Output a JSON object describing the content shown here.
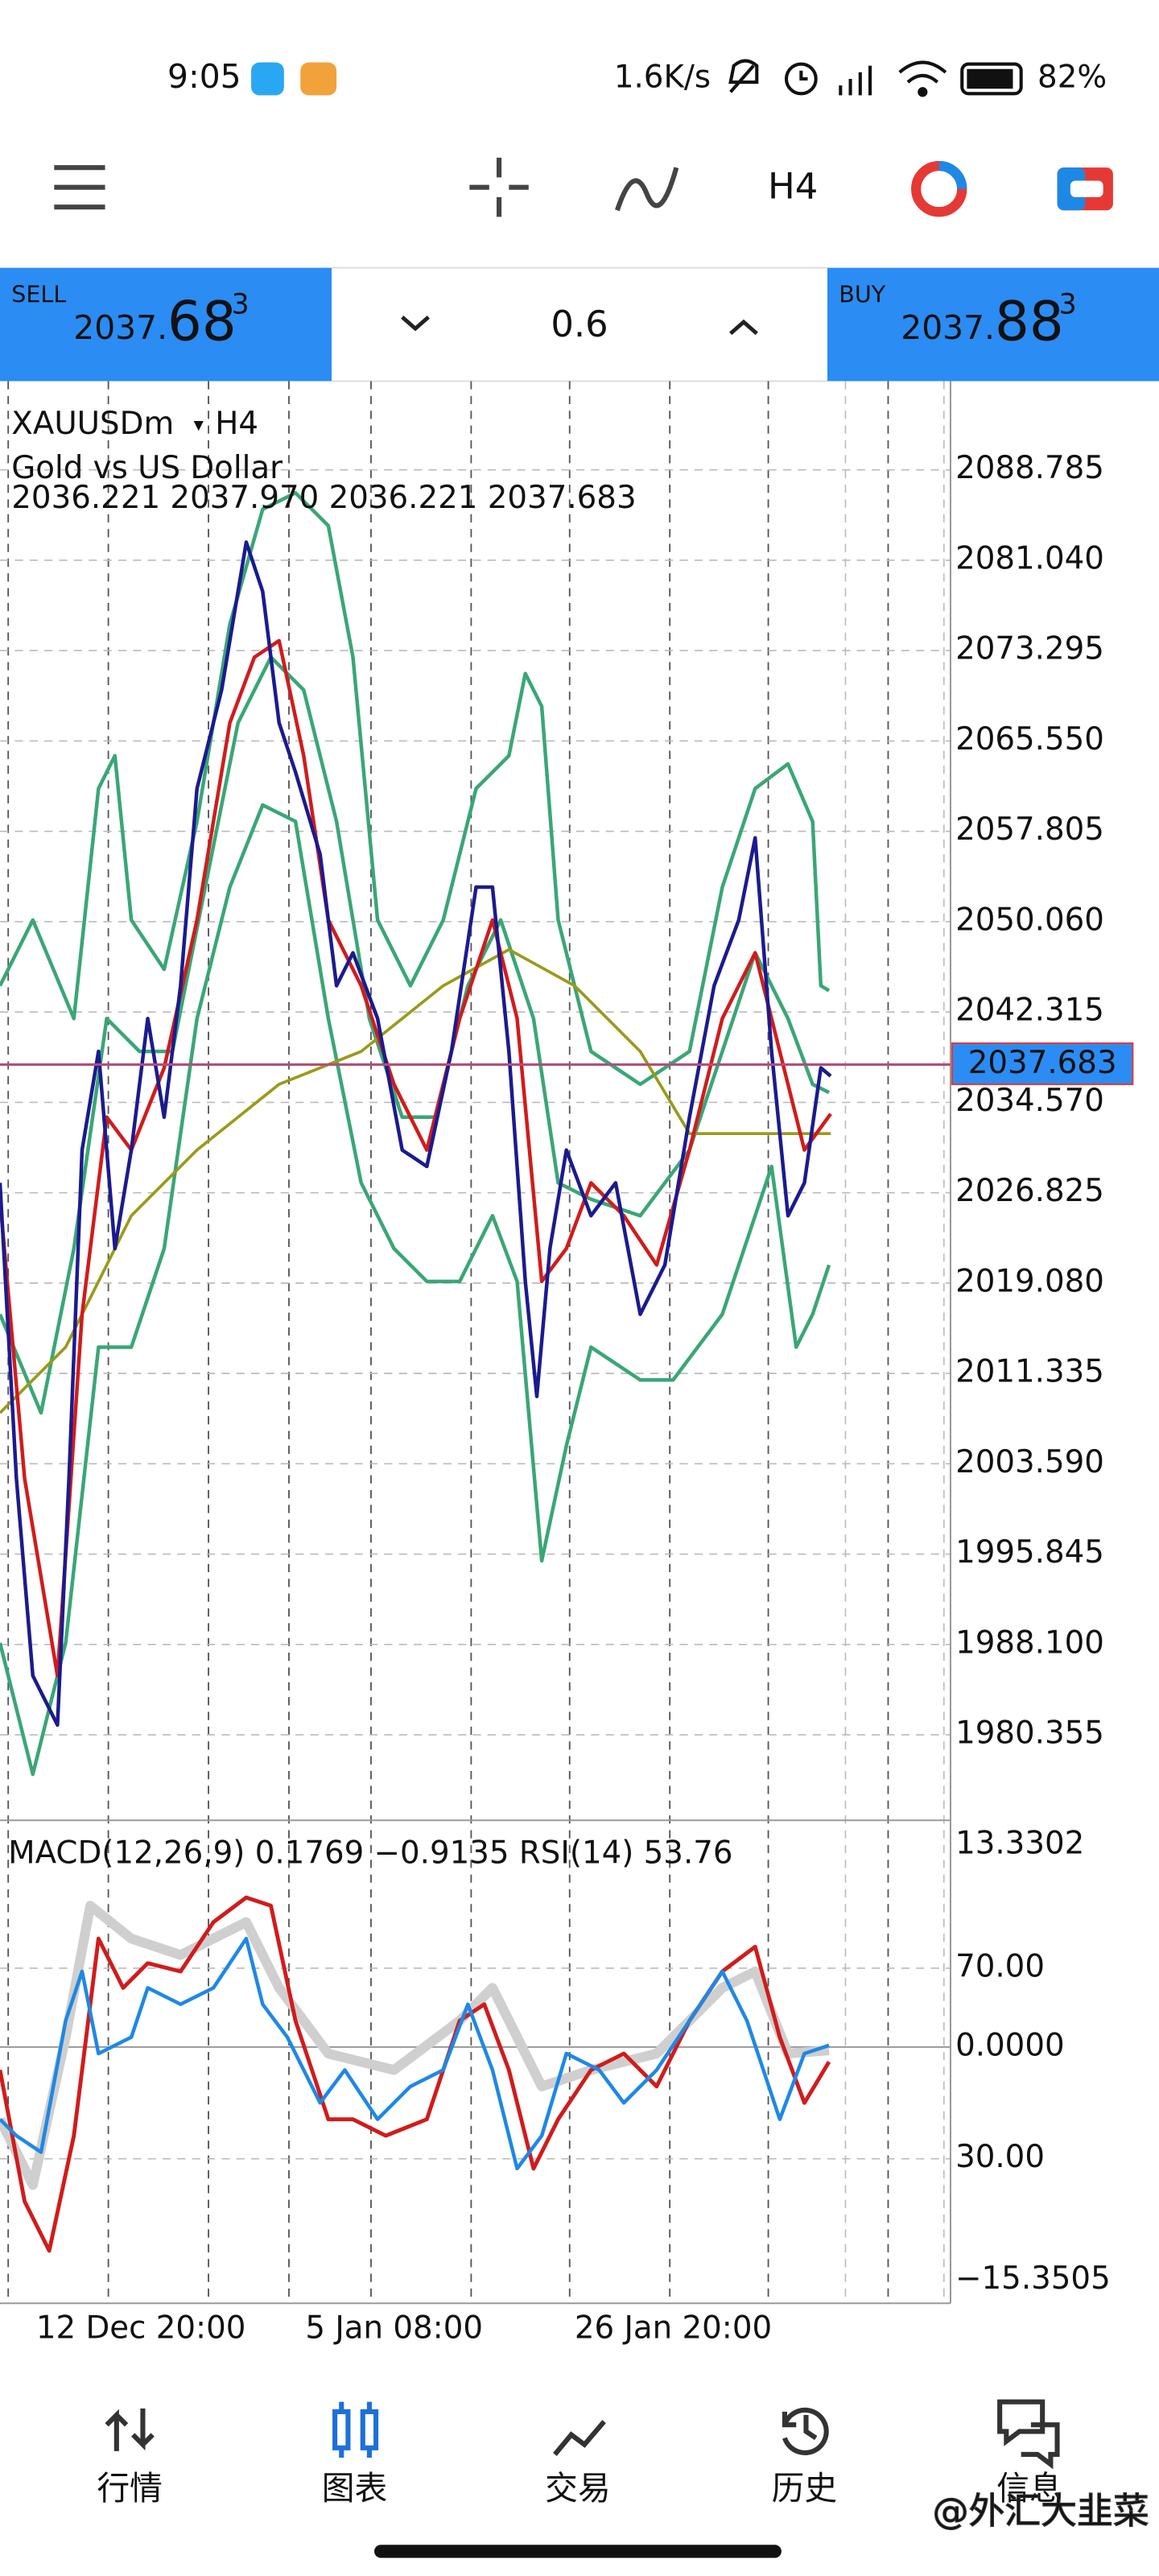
{
  "status_bar": {
    "time": "9:05",
    "net_speed": "1.6K/s",
    "battery": "82%"
  },
  "toolbar": {
    "timeframe": "H4"
  },
  "trade_panel": {
    "sell": {
      "label": "SELL",
      "price": "2037.",
      "price_big": "68",
      "price_sup": "3"
    },
    "volume": "0.6",
    "buy": {
      "label": "BUY",
      "price": "2037.",
      "price_big": "88",
      "price_sup": "3"
    }
  },
  "chart": {
    "symbol": "XAUUSDm",
    "timeframe": "H4",
    "description": "Gold vs US Dollar",
    "ohlc": "2036.221 2037.970 2036.221 2037.683",
    "price_ticks": [
      "2088.785",
      "2081.040",
      "2073.295",
      "2065.550",
      "2057.805",
      "2050.060",
      "2042.315",
      "2034.570",
      "2026.825",
      "2019.080",
      "2011.335",
      "2003.590",
      "1995.845",
      "1988.100",
      "1980.355"
    ],
    "current_price": "2037.683",
    "indicator_label": "MACD(12,26,9) 0.1769 −0.9135 RSI(14) 53.76",
    "indicator_ticks": [
      "13.3302",
      "70.00",
      "0.0000",
      "30.00",
      "−15.3505"
    ],
    "time_labels": [
      "12 Dec 20:00",
      "5 Jan 08:00",
      "26 Jan 20:00"
    ]
  },
  "bottom_nav": [
    {
      "label": "行情"
    },
    {
      "label": "图表"
    },
    {
      "label": "交易"
    },
    {
      "label": "历史"
    },
    {
      "label": "信息"
    }
  ],
  "watermark": "@外汇大韭菜"
}
